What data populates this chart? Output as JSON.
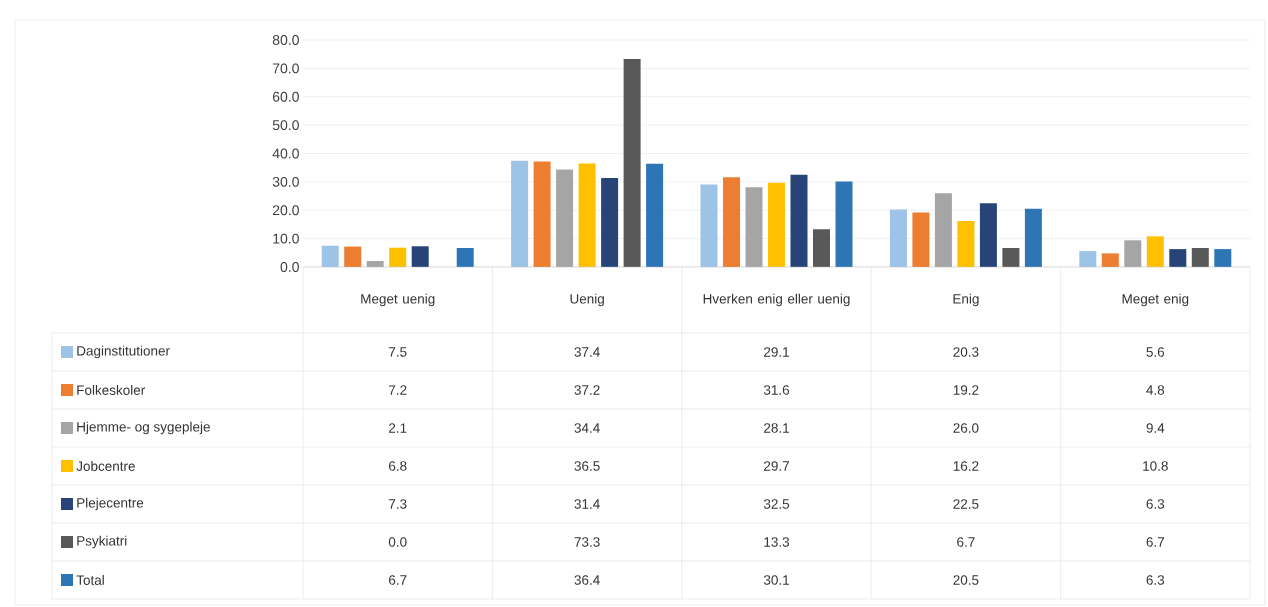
{
  "chart_data": {
    "type": "bar",
    "categories": [
      "Meget uenig",
      "Uenig",
      "Hverken enig eller uenig",
      "Enig",
      "Meget enig"
    ],
    "series": [
      {
        "name": "Daginstitutioner",
        "color": "#9dc3e6",
        "values": [
          7.5,
          37.4,
          29.1,
          20.3,
          5.6
        ],
        "value_labels": [
          "7.5",
          "37.4",
          "29.1",
          "20.3",
          "5.6"
        ]
      },
      {
        "name": "Folkeskoler",
        "color": "#ed7d31",
        "values": [
          7.2,
          37.2,
          31.6,
          19.2,
          4.8
        ],
        "value_labels": [
          "7.2",
          "37.2",
          "31.6",
          "19.2",
          "4.8"
        ]
      },
      {
        "name": "Hjemme- og sygepleje",
        "color": "#a5a5a5",
        "values": [
          2.1,
          34.4,
          28.1,
          26.0,
          9.4
        ],
        "value_labels": [
          "2.1",
          "34.4",
          "28.1",
          "26.0",
          "9.4"
        ]
      },
      {
        "name": "Jobcentre",
        "color": "#ffc000",
        "values": [
          6.8,
          36.5,
          29.7,
          16.2,
          10.8
        ],
        "value_labels": [
          "6.8",
          "36.5",
          "29.7",
          "16.2",
          "10.8"
        ]
      },
      {
        "name": "Plejecentre",
        "color": "#264478",
        "values": [
          7.3,
          31.4,
          32.5,
          22.5,
          6.3
        ],
        "value_labels": [
          "7.3",
          "31.4",
          "32.5",
          "22.5",
          "6.3"
        ]
      },
      {
        "name": "Psykiatri",
        "color": "#595959",
        "values": [
          0.0,
          73.3,
          13.3,
          6.7,
          6.7
        ],
        "value_labels": [
          "0.0",
          "73.3",
          "13.3",
          "6.7",
          "6.7"
        ]
      },
      {
        "name": "Total",
        "color": "#2e75b6",
        "values": [
          6.7,
          36.4,
          30.1,
          20.5,
          6.3
        ],
        "value_labels": [
          "6.7",
          "36.4",
          "30.1",
          "20.5",
          "6.3"
        ]
      }
    ],
    "ylim": [
      0,
      80
    ],
    "yticks": [
      {
        "value": 0,
        "label": "0.0"
      },
      {
        "value": 10,
        "label": "10.0"
      },
      {
        "value": 20,
        "label": "20.0"
      },
      {
        "value": 30,
        "label": "30.0"
      },
      {
        "value": 40,
        "label": "40.0"
      },
      {
        "value": 50,
        "label": "50.0"
      },
      {
        "value": 60,
        "label": "60.0"
      },
      {
        "value": 70,
        "label": "70.0"
      },
      {
        "value": 80,
        "label": "80.0"
      }
    ],
    "grid": "y",
    "legend": "bottom left"
  }
}
